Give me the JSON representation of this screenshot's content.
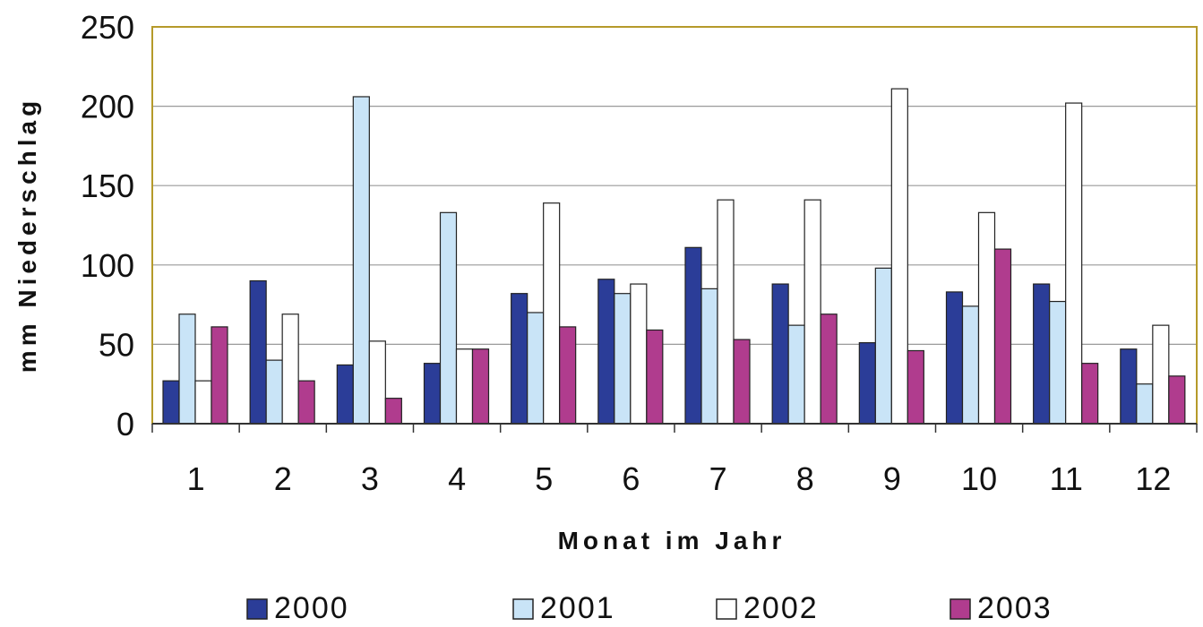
{
  "chart_data": {
    "type": "bar",
    "title": "",
    "xlabel": "Monat im Jahr",
    "ylabel": "mm Niederschlag",
    "categories": [
      "1",
      "2",
      "3",
      "4",
      "5",
      "6",
      "7",
      "8",
      "9",
      "10",
      "11",
      "12"
    ],
    "yticks": [
      "0",
      "50",
      "100",
      "150",
      "200",
      "250"
    ],
    "ylim": [
      0,
      250
    ],
    "grid": true,
    "legend_position": "bottom",
    "series": [
      {
        "name": "2000",
        "color": "#2b3d98",
        "values": [
          27,
          90,
          37,
          38,
          82,
          91,
          111,
          88,
          51,
          83,
          88,
          47
        ]
      },
      {
        "name": "2001",
        "color": "#c9e4f7",
        "values": [
          69,
          40,
          206,
          133,
          70,
          82,
          85,
          62,
          98,
          74,
          77,
          25
        ]
      },
      {
        "name": "2002",
        "color": "#ffffff",
        "values": [
          27,
          69,
          52,
          47,
          139,
          88,
          141,
          141,
          211,
          133,
          202,
          62
        ]
      },
      {
        "name": "2003",
        "color": "#b03c8e",
        "values": [
          61,
          27,
          16,
          47,
          61,
          59,
          53,
          69,
          46,
          110,
          38,
          30
        ]
      }
    ]
  }
}
